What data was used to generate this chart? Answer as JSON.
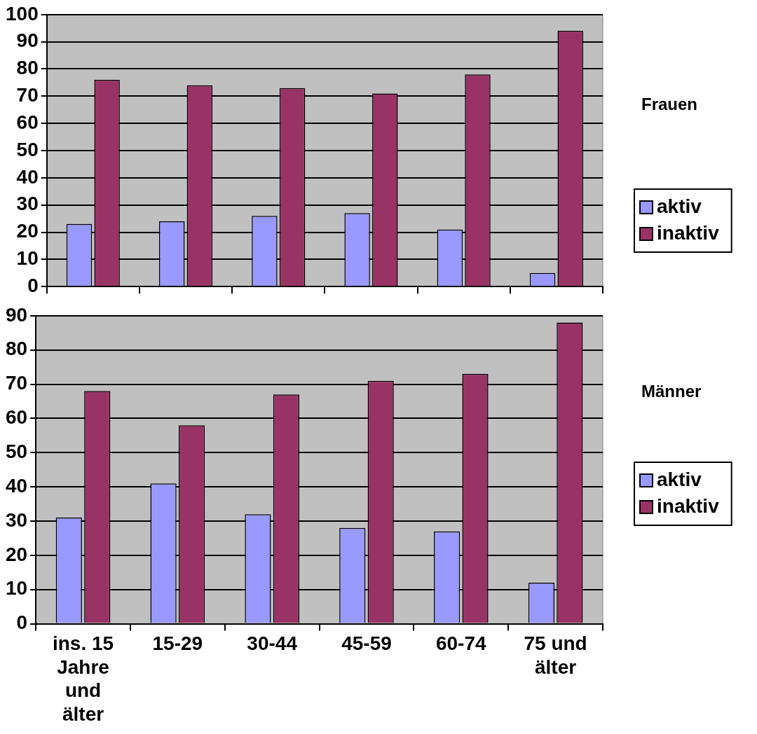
{
  "chart_data": [
    {
      "type": "bar",
      "annotations": [
        "Frauen"
      ],
      "categories": [
        null,
        null,
        null,
        null,
        null,
        null
      ],
      "series": [
        {
          "name": "aktiv",
          "color": "#9999ff",
          "values": [
            23,
            24,
            26,
            27,
            21,
            5
          ]
        },
        {
          "name": "inaktiv",
          "color": "#993366",
          "values": [
            76,
            74,
            73,
            71,
            78,
            94
          ]
        }
      ],
      "ylim": [
        0,
        100
      ],
      "yticks": [
        0,
        10,
        20,
        30,
        40,
        50,
        60,
        70,
        80,
        90,
        100
      ],
      "grid": "y",
      "legend": "right",
      "tick_labels": "y"
    },
    {
      "type": "bar",
      "annotations": [
        "Männer"
      ],
      "categories": [
        "ins. 15 Jahre und älter",
        "15-29",
        "30-44",
        "45-59",
        "60-74",
        "75 und älter"
      ],
      "series": [
        {
          "name": "aktiv",
          "color": "#9999ff",
          "values": [
            31,
            41,
            32,
            28,
            27,
            12
          ]
        },
        {
          "name": "inaktiv",
          "color": "#993366",
          "values": [
            68,
            58,
            67,
            71,
            73,
            88
          ]
        }
      ],
      "ylim": [
        0,
        90
      ],
      "yticks": [
        0,
        10,
        20,
        30,
        40,
        50,
        60,
        70,
        80,
        90
      ],
      "grid": "y",
      "legend": "right"
    }
  ]
}
